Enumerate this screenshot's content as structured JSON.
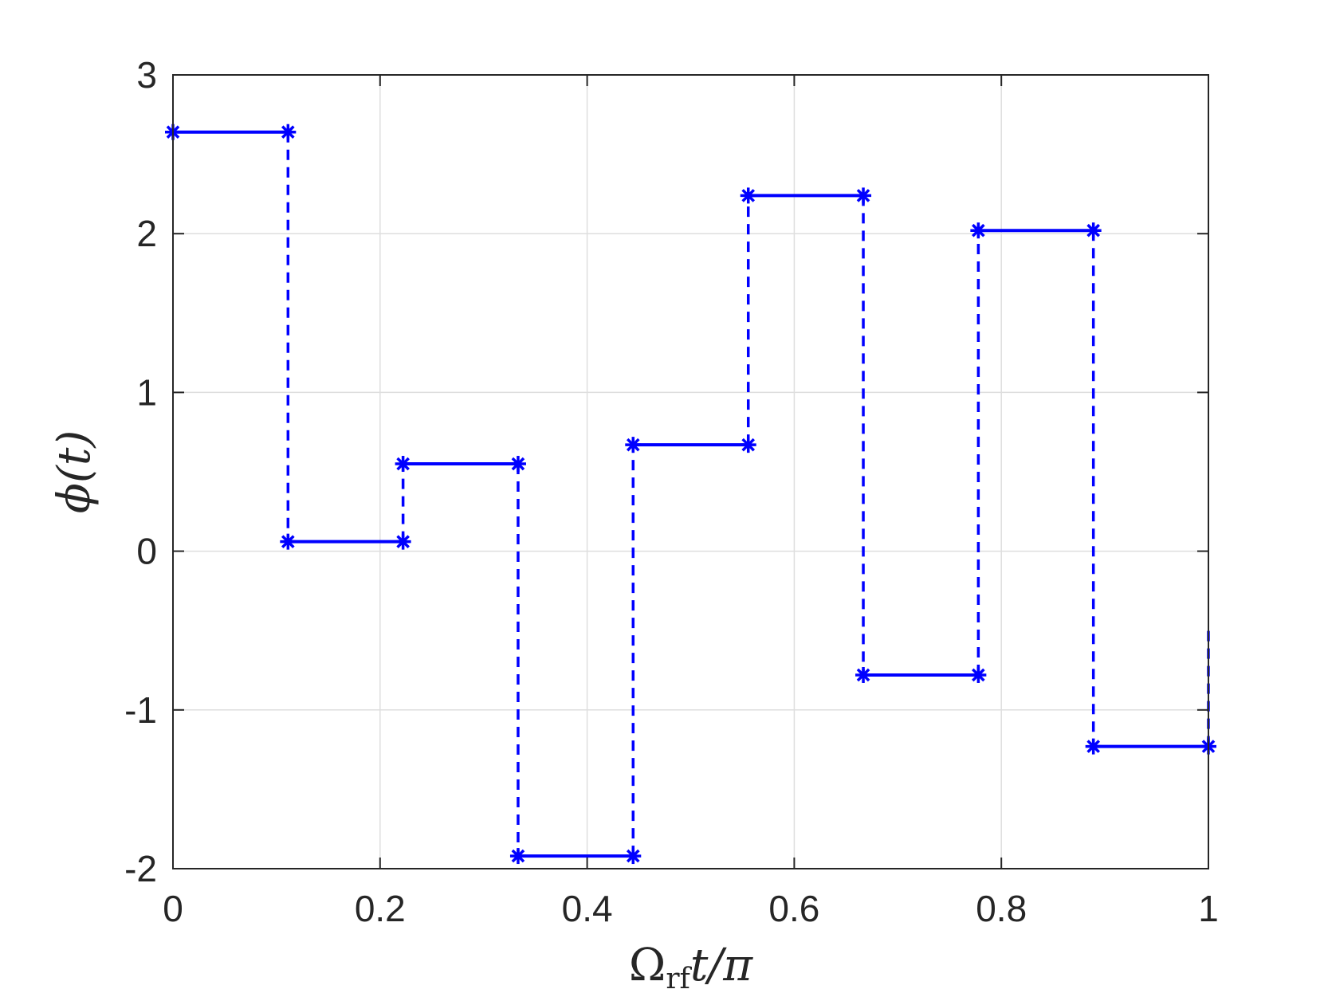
{
  "chart_data": {
    "type": "line",
    "title": "",
    "xlabel": "Ωrf t/π",
    "xlabel_parts": {
      "base": "Ω",
      "subscript": "rf",
      "rest": "t/π"
    },
    "ylabel": "ϕ(t)",
    "xlim": [
      0,
      1
    ],
    "ylim": [
      -2,
      3
    ],
    "x_ticks": [
      0,
      0.2,
      0.4,
      0.6,
      0.8,
      1
    ],
    "x_tick_labels": [
      "0",
      "0.2",
      "0.4",
      "0.6",
      "0.8",
      "1"
    ],
    "y_ticks": [
      -2,
      -1,
      0,
      1,
      2,
      3
    ],
    "y_tick_labels": [
      "-2",
      "-1",
      "0",
      "1",
      "2",
      "3"
    ],
    "grid": true,
    "series": [
      {
        "style": "piecewise-constant with asterisk markers",
        "color": "#0000ff",
        "breakpoints": [
          0,
          0.1111,
          0.2222,
          0.3333,
          0.4444,
          0.5556,
          0.6667,
          0.7778,
          0.8889,
          1.0
        ],
        "levels": [
          2.64,
          0.06,
          0.55,
          -1.92,
          0.67,
          2.24,
          -0.78,
          2.02,
          -1.23
        ],
        "final_jump_to": -0.47
      }
    ]
  }
}
